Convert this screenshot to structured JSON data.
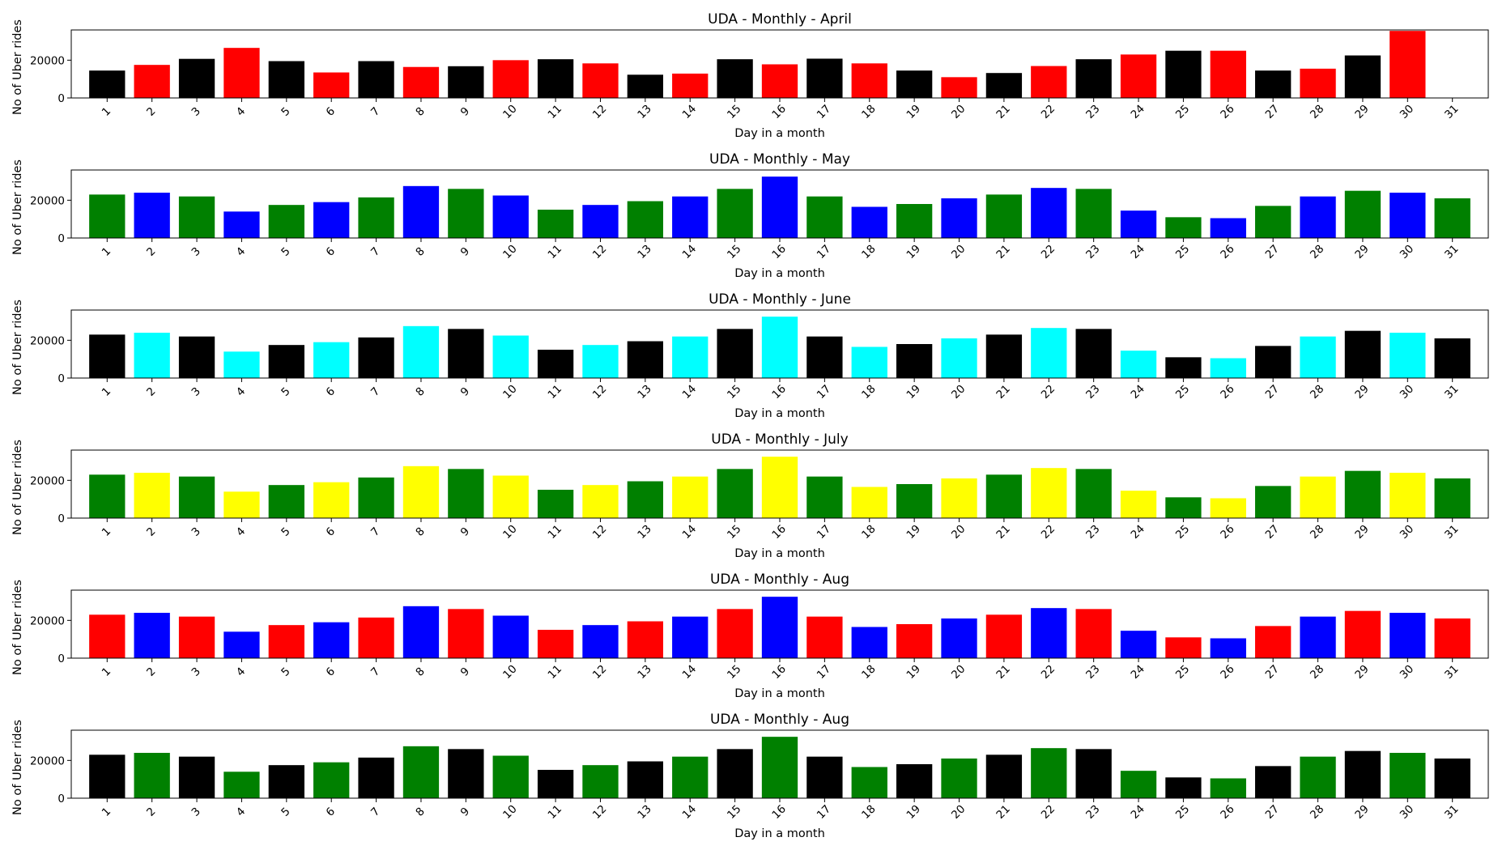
{
  "chart_data": [
    {
      "type": "bar",
      "title": "UDA - Monthly - April",
      "xlabel": "Day in a month",
      "ylabel": "No of Uber rides",
      "ylim": [
        0,
        36000
      ],
      "yticks": [
        0,
        20000
      ],
      "categories": [
        "1",
        "2",
        "3",
        "4",
        "5",
        "6",
        "7",
        "8",
        "9",
        "10",
        "11",
        "12",
        "13",
        "14",
        "15",
        "16",
        "17",
        "18",
        "19",
        "20",
        "21",
        "22",
        "23",
        "24",
        "25",
        "26",
        "27",
        "28",
        "29",
        "30",
        "31"
      ],
      "values": [
        14500,
        17500,
        20700,
        26500,
        19500,
        13500,
        19500,
        16400,
        16800,
        20000,
        20500,
        18300,
        12300,
        12900,
        20500,
        17800,
        20800,
        18300,
        14500,
        11000,
        13200,
        16900,
        20500,
        23000,
        25000,
        25000,
        14500,
        15500,
        22500,
        35500,
        0
      ],
      "colors": [
        "#000000",
        "#ff0000"
      ]
    },
    {
      "type": "bar",
      "title": "UDA - Monthly - May",
      "xlabel": "Day in a month",
      "ylabel": "No of Uber rides",
      "ylim": [
        0,
        36000
      ],
      "yticks": [
        0,
        20000
      ],
      "categories": [
        "1",
        "2",
        "3",
        "4",
        "5",
        "6",
        "7",
        "8",
        "9",
        "10",
        "11",
        "12",
        "13",
        "14",
        "15",
        "16",
        "17",
        "18",
        "19",
        "20",
        "21",
        "22",
        "23",
        "24",
        "25",
        "26",
        "27",
        "28",
        "29",
        "30",
        "31"
      ],
      "values": [
        23000,
        24000,
        22000,
        14000,
        17500,
        19000,
        21500,
        27500,
        26000,
        22500,
        15000,
        17500,
        19500,
        22000,
        26000,
        32500,
        22000,
        16500,
        18000,
        21000,
        23000,
        26500,
        26000,
        14500,
        11000,
        10500,
        17000,
        22000,
        25000,
        24000,
        21000
      ],
      "colors": [
        "#008000",
        "#0000ff"
      ]
    },
    {
      "type": "bar",
      "title": "UDA - Monthly - June",
      "xlabel": "Day in a month",
      "ylabel": "No of Uber rides",
      "ylim": [
        0,
        36000
      ],
      "yticks": [
        0,
        20000
      ],
      "categories": [
        "1",
        "2",
        "3",
        "4",
        "5",
        "6",
        "7",
        "8",
        "9",
        "10",
        "11",
        "12",
        "13",
        "14",
        "15",
        "16",
        "17",
        "18",
        "19",
        "20",
        "21",
        "22",
        "23",
        "24",
        "25",
        "26",
        "27",
        "28",
        "29",
        "30",
        "31"
      ],
      "values": [
        23000,
        24000,
        22000,
        14000,
        17500,
        19000,
        21500,
        27500,
        26000,
        22500,
        15000,
        17500,
        19500,
        22000,
        26000,
        32500,
        22000,
        16500,
        18000,
        21000,
        23000,
        26500,
        26000,
        14500,
        11000,
        10500,
        17000,
        22000,
        25000,
        24000,
        21000
      ],
      "colors": [
        "#000000",
        "#00ffff"
      ]
    },
    {
      "type": "bar",
      "title": "UDA - Monthly - July",
      "xlabel": "Day in a month",
      "ylabel": "No of Uber rides",
      "ylim": [
        0,
        36000
      ],
      "yticks": [
        0,
        20000
      ],
      "categories": [
        "1",
        "2",
        "3",
        "4",
        "5",
        "6",
        "7",
        "8",
        "9",
        "10",
        "11",
        "12",
        "13",
        "14",
        "15",
        "16",
        "17",
        "18",
        "19",
        "20",
        "21",
        "22",
        "23",
        "24",
        "25",
        "26",
        "27",
        "28",
        "29",
        "30",
        "31"
      ],
      "values": [
        23000,
        24000,
        22000,
        14000,
        17500,
        19000,
        21500,
        27500,
        26000,
        22500,
        15000,
        17500,
        19500,
        22000,
        26000,
        32500,
        22000,
        16500,
        18000,
        21000,
        23000,
        26500,
        26000,
        14500,
        11000,
        10500,
        17000,
        22000,
        25000,
        24000,
        21000
      ],
      "colors": [
        "#008000",
        "#ffff00"
      ]
    },
    {
      "type": "bar",
      "title": "UDA - Monthly - Aug",
      "xlabel": "Day in a month",
      "ylabel": "No of Uber rides",
      "ylim": [
        0,
        36000
      ],
      "yticks": [
        0,
        20000
      ],
      "categories": [
        "1",
        "2",
        "3",
        "4",
        "5",
        "6",
        "7",
        "8",
        "9",
        "10",
        "11",
        "12",
        "13",
        "14",
        "15",
        "16",
        "17",
        "18",
        "19",
        "20",
        "21",
        "22",
        "23",
        "24",
        "25",
        "26",
        "27",
        "28",
        "29",
        "30",
        "31"
      ],
      "values": [
        23000,
        24000,
        22000,
        14000,
        17500,
        19000,
        21500,
        27500,
        26000,
        22500,
        15000,
        17500,
        19500,
        22000,
        26000,
        32500,
        22000,
        16500,
        18000,
        21000,
        23000,
        26500,
        26000,
        14500,
        11000,
        10500,
        17000,
        22000,
        25000,
        24000,
        21000
      ],
      "colors": [
        "#ff0000",
        "#0000ff"
      ]
    },
    {
      "type": "bar",
      "title": "UDA - Monthly - Aug",
      "xlabel": "Day in a month",
      "ylabel": "No of Uber rides",
      "ylim": [
        0,
        36000
      ],
      "yticks": [
        0,
        20000
      ],
      "categories": [
        "1",
        "2",
        "3",
        "4",
        "5",
        "6",
        "7",
        "8",
        "9",
        "10",
        "11",
        "12",
        "13",
        "14",
        "15",
        "16",
        "17",
        "18",
        "19",
        "20",
        "21",
        "22",
        "23",
        "24",
        "25",
        "26",
        "27",
        "28",
        "29",
        "30",
        "31"
      ],
      "values": [
        23000,
        24000,
        22000,
        14000,
        17500,
        19000,
        21500,
        27500,
        26000,
        22500,
        15000,
        17500,
        19500,
        22000,
        26000,
        32500,
        22000,
        16500,
        18000,
        21000,
        23000,
        26500,
        26000,
        14500,
        11000,
        10500,
        17000,
        22000,
        25000,
        24000,
        21000
      ],
      "colors": [
        "#000000",
        "#008000"
      ]
    }
  ]
}
